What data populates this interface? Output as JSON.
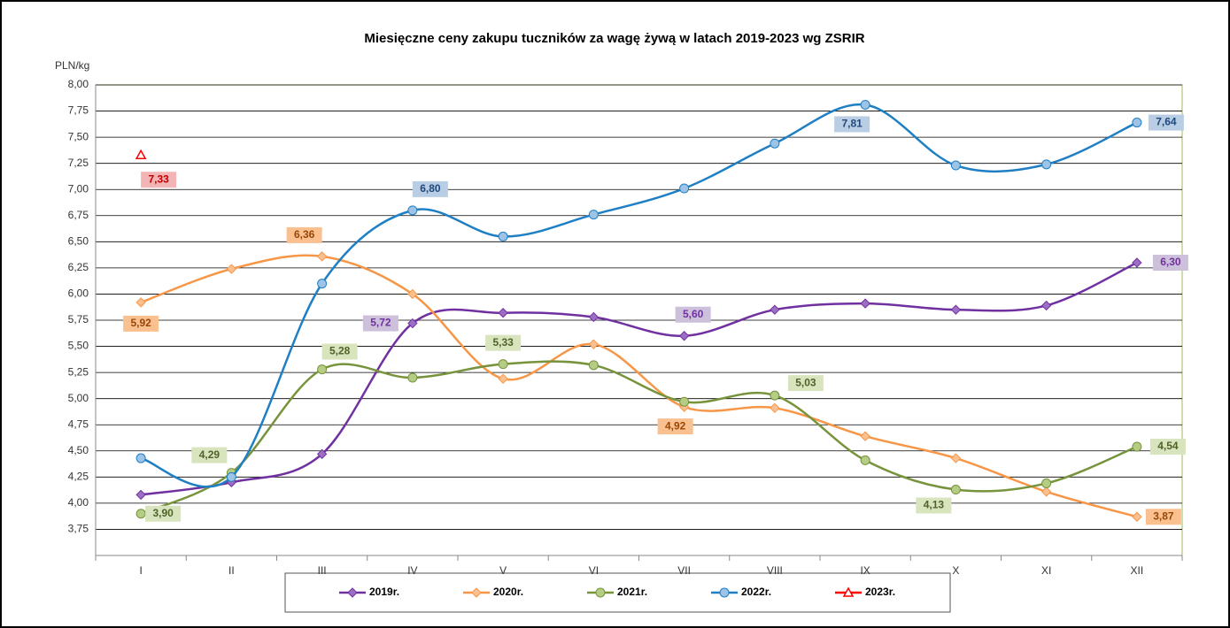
{
  "chart_data": {
    "type": "line",
    "title": "Miesięczne ceny zakupu tuczników za wagę żywą w latach 2019-2023  wg ZSRIR",
    "y_label": "PLN/kg",
    "categories": [
      "I",
      "II",
      "III",
      "IV",
      "V",
      "VI",
      "VII",
      "VIII",
      "IX",
      "X",
      "XI",
      "XII"
    ],
    "ylim": [
      3.5,
      8
    ],
    "yticks": [
      {
        "value": 3.75,
        "label": "3,75"
      },
      {
        "value": 4,
        "label": "4,00"
      },
      {
        "value": 4.25,
        "label": "4,25"
      },
      {
        "value": 4.5,
        "label": "4,50"
      },
      {
        "value": 4.75,
        "label": "4,75"
      },
      {
        "value": 5,
        "label": "5,00"
      },
      {
        "value": 5.25,
        "label": "5,25"
      },
      {
        "value": 5.5,
        "label": "5,50"
      },
      {
        "value": 5.75,
        "label": "5,75"
      },
      {
        "value": 6,
        "label": "6,00"
      },
      {
        "value": 6.25,
        "label": "6,25"
      },
      {
        "value": 6.5,
        "label": "6,50"
      },
      {
        "value": 6.75,
        "label": "6,75"
      },
      {
        "value": 7,
        "label": "7,00"
      },
      {
        "value": 7.25,
        "label": "7,25"
      },
      {
        "value": 7.5,
        "label": "7,50"
      },
      {
        "value": 7.75,
        "label": "7,75"
      },
      {
        "value": 8,
        "label": "8,00"
      }
    ],
    "grid": true,
    "legend": "bottom",
    "series": [
      {
        "name": "2019r.",
        "color": "#7030a0",
        "values": [
          4.08,
          4.2,
          4.47,
          5.72,
          5.82,
          5.78,
          5.6,
          5.85,
          5.91,
          5.85,
          5.89,
          6.3
        ],
        "value_labels": [
          null,
          null,
          null,
          "5,72",
          null,
          null,
          "5,60",
          null,
          null,
          null,
          null,
          "6,30"
        ]
      },
      {
        "name": "2020r.",
        "color": "#f79646",
        "values": [
          5.92,
          6.24,
          6.36,
          6.0,
          5.19,
          5.52,
          4.92,
          4.91,
          4.64,
          4.43,
          4.11,
          3.87
        ],
        "value_labels": [
          "5,92",
          null,
          "6,36",
          null,
          null,
          null,
          "4,92",
          null,
          null,
          null,
          null,
          "3,87"
        ]
      },
      {
        "name": "2021r.",
        "color": "#77933c",
        "values": [
          3.9,
          4.29,
          5.28,
          5.2,
          5.33,
          5.32,
          4.97,
          5.03,
          4.41,
          4.13,
          4.19,
          4.54
        ],
        "value_labels": [
          "3,90",
          "4,29",
          "5,28",
          null,
          "5,33",
          null,
          null,
          "5,03",
          null,
          "4,13",
          null,
          "4,54"
        ]
      },
      {
        "name": "2022r.",
        "color": "#1f7fc4",
        "values": [
          4.43,
          4.25,
          6.1,
          6.8,
          6.55,
          6.76,
          7.01,
          7.44,
          7.81,
          7.23,
          7.24,
          7.64
        ],
        "value_labels": [
          null,
          null,
          null,
          "6,80",
          null,
          null,
          null,
          null,
          "7,81",
          null,
          null,
          "7,64"
        ]
      },
      {
        "name": "2023r.",
        "color": "#ff0000",
        "values": [
          7.33,
          null,
          null,
          null,
          null,
          null,
          null,
          null,
          null,
          null,
          null,
          null
        ],
        "value_labels": [
          "7,33",
          null,
          null,
          null,
          null,
          null,
          null,
          null,
          null,
          null,
          null,
          null
        ]
      }
    ]
  }
}
